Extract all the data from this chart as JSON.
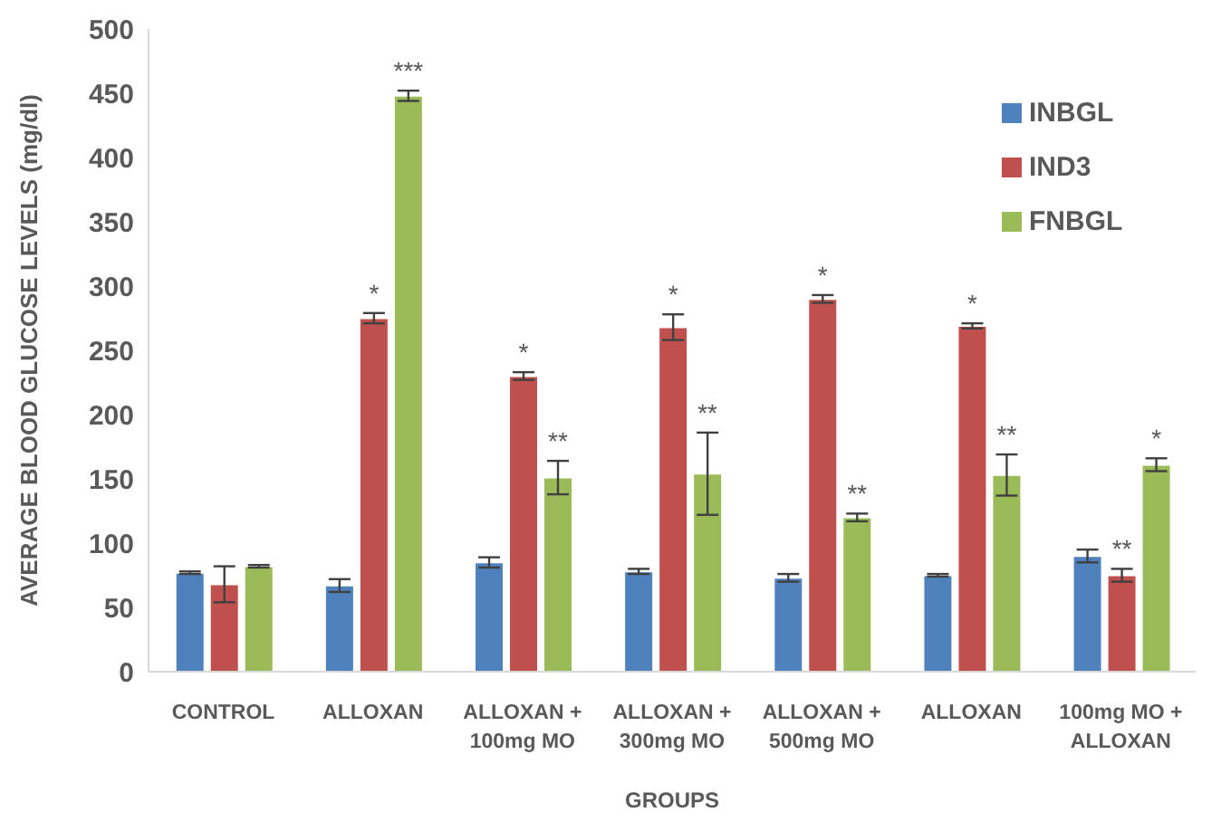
{
  "chart_data": {
    "type": "bar",
    "xlabel": "GROUPS",
    "ylabel": "AVERAGE BLOOD GLUCOSE LEVELS (mg/dl)",
    "categories": [
      "CONTROL",
      "ALLOXAN",
      "ALLOXAN + 100mg MO",
      "ALLOXAN + 300mg MO",
      "ALLOXAN + 500mg MO",
      "ALLOXAN",
      "100mg MO + ALLOXAN"
    ],
    "series": [
      {
        "name": "INBGL",
        "color": "#4f81bd",
        "values": [
          77,
          67,
          85,
          78,
          73,
          75,
          90
        ],
        "errors": [
          1,
          5,
          4,
          2,
          3,
          1,
          5
        ]
      },
      {
        "name": "IND3",
        "color": "#c0504d",
        "values": [
          68,
          275,
          230,
          268,
          290,
          269,
          75
        ],
        "errors": [
          14,
          4,
          3,
          10,
          3,
          2,
          5
        ],
        "value_labels": [
          null,
          "*",
          "*",
          "*",
          "*",
          "*",
          "**"
        ]
      },
      {
        "name": "FNBGL",
        "color": "#9bbb59",
        "values": [
          82,
          448,
          151,
          154,
          120,
          153,
          161
        ],
        "errors": [
          1,
          4,
          13,
          32,
          3,
          16,
          5
        ],
        "value_labels": [
          null,
          "***",
          "**",
          "**",
          "**",
          "**",
          "*"
        ]
      }
    ],
    "ylim": [
      0,
      500
    ],
    "yticks": [
      0,
      50,
      100,
      150,
      200,
      250,
      300,
      350,
      400,
      450,
      500
    ],
    "grid": false,
    "legend": "top right"
  }
}
